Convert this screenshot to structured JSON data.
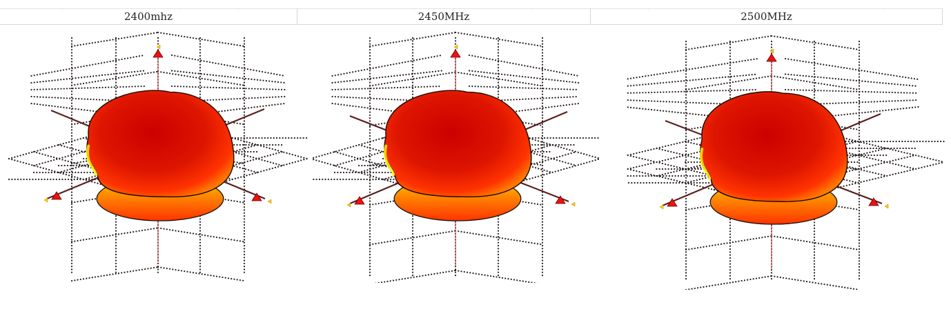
{
  "headers": {
    "col1": "2400mhz",
    "col2": "2450MHz",
    "col3": "2500MHz"
  },
  "colors": {
    "grid_dots": "#2a2020",
    "axis_dark": "#5b1e1e",
    "axis_vertical": "#c86060",
    "pattern_deep": "#cc0000",
    "pattern_mid": "#ff3300",
    "pattern_edge": "#ffee00",
    "marker": "#ee1111"
  },
  "panels": [
    {
      "frequency": "2400mhz",
      "icon": "3d-radiation-pattern"
    },
    {
      "frequency": "2450MHz",
      "icon": "3d-radiation-pattern"
    },
    {
      "frequency": "2500MHz",
      "icon": "3d-radiation-pattern"
    }
  ]
}
